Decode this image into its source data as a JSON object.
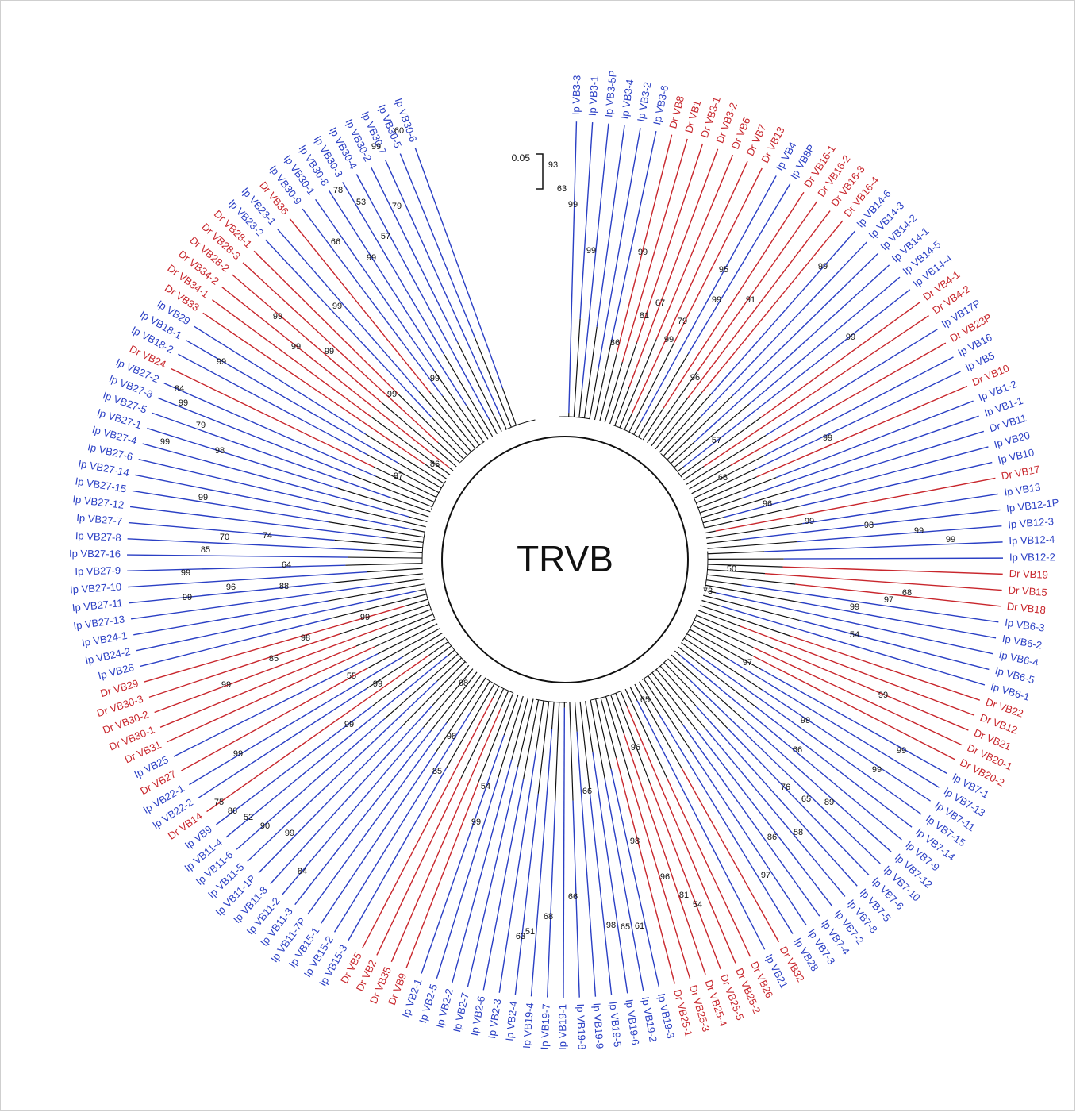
{
  "title": "TRVB",
  "scale_label": "0.05",
  "leaves": [
    {
      "label": "Ip VB3-3",
      "color": "#2a3fc4"
    },
    {
      "label": "Ip VB3-1",
      "color": "#2a3fc4"
    },
    {
      "label": "Ip VB3-5P",
      "color": "#2a3fc4"
    },
    {
      "label": "Ip VB3-4",
      "color": "#2a3fc4"
    },
    {
      "label": "Ip VB3-2",
      "color": "#2a3fc4"
    },
    {
      "label": "Ip VB3-6",
      "color": "#2a3fc4"
    },
    {
      "label": "Dr VB8",
      "color": "#c8262c"
    },
    {
      "label": "Dr VB1",
      "color": "#c8262c"
    },
    {
      "label": "Dr VB3-1",
      "color": "#c8262c"
    },
    {
      "label": "Dr VB3-2",
      "color": "#c8262c"
    },
    {
      "label": "Dr VB6",
      "color": "#c8262c"
    },
    {
      "label": "Dr VB7",
      "color": "#c8262c"
    },
    {
      "label": "Dr VB13",
      "color": "#c8262c"
    },
    {
      "label": "Ip VB4",
      "color": "#2a3fc4"
    },
    {
      "label": "Ip VB8P",
      "color": "#2a3fc4"
    },
    {
      "label": "Dr VB16-1",
      "color": "#c8262c"
    },
    {
      "label": "Dr VB16-2",
      "color": "#c8262c"
    },
    {
      "label": "Dr VB16-3",
      "color": "#c8262c"
    },
    {
      "label": "Dr VB16-4",
      "color": "#c8262c"
    },
    {
      "label": "Ip VB14-6",
      "color": "#2a3fc4"
    },
    {
      "label": "Ip VB14-3",
      "color": "#2a3fc4"
    },
    {
      "label": "Ip VB14-2",
      "color": "#2a3fc4"
    },
    {
      "label": "Ip VB14-1",
      "color": "#2a3fc4"
    },
    {
      "label": "Ip VB14-5",
      "color": "#2a3fc4"
    },
    {
      "label": "Ip VB14-4",
      "color": "#2a3fc4"
    },
    {
      "label": "Dr VB4-1",
      "color": "#c8262c"
    },
    {
      "label": "Dr VB4-2",
      "color": "#c8262c"
    },
    {
      "label": "Ip VB17P",
      "color": "#2a3fc4"
    },
    {
      "label": "Dr VB23P",
      "color": "#c8262c"
    },
    {
      "label": "Ip VB16",
      "color": "#2a3fc4"
    },
    {
      "label": "Ip VB5",
      "color": "#2a3fc4"
    },
    {
      "label": "Dr VB10",
      "color": "#c8262c"
    },
    {
      "label": "Ip VB1-2",
      "color": "#2a3fc4"
    },
    {
      "label": "Ip VB1-1",
      "color": "#2a3fc4"
    },
    {
      "label": "Dr VB11",
      "color": "#2a3fc4"
    },
    {
      "label": "Ip VB20",
      "color": "#2a3fc4"
    },
    {
      "label": "Ip VB10",
      "color": "#2a3fc4"
    },
    {
      "label": "Dr VB17",
      "color": "#c8262c"
    },
    {
      "label": "Ip VB13",
      "color": "#2a3fc4"
    },
    {
      "label": "Ip VB12-1P",
      "color": "#2a3fc4"
    },
    {
      "label": "Ip VB12-3",
      "color": "#2a3fc4"
    },
    {
      "label": "Ip VB12-4",
      "color": "#2a3fc4"
    },
    {
      "label": "Ip VB12-2",
      "color": "#2a3fc4"
    },
    {
      "label": "Dr VB19",
      "color": "#c8262c"
    },
    {
      "label": "Dr VB15",
      "color": "#c8262c"
    },
    {
      "label": "Dr VB18",
      "color": "#c8262c"
    },
    {
      "label": "Ip VB6-3",
      "color": "#2a3fc4"
    },
    {
      "label": "Ip VB6-2",
      "color": "#2a3fc4"
    },
    {
      "label": "Ip VB6-4",
      "color": "#2a3fc4"
    },
    {
      "label": "Ip VB6-5",
      "color": "#2a3fc4"
    },
    {
      "label": "Ip VB6-1",
      "color": "#2a3fc4"
    },
    {
      "label": "Dr VB22",
      "color": "#c8262c"
    },
    {
      "label": "Dr VB12",
      "color": "#c8262c"
    },
    {
      "label": "Dr VB21",
      "color": "#c8262c"
    },
    {
      "label": "Dr VB20-1",
      "color": "#c8262c"
    },
    {
      "label": "Dr VB20-2",
      "color": "#c8262c"
    },
    {
      "label": "Ip VB7-1",
      "color": "#2a3fc4"
    },
    {
      "label": "Ip VB7-13",
      "color": "#2a3fc4"
    },
    {
      "label": "Ip VB7-11",
      "color": "#2a3fc4"
    },
    {
      "label": "Ip VB7-15",
      "color": "#2a3fc4"
    },
    {
      "label": "Ip VB7-14",
      "color": "#2a3fc4"
    },
    {
      "label": "Ip VB7-9",
      "color": "#2a3fc4"
    },
    {
      "label": "Ip VB7-12",
      "color": "#2a3fc4"
    },
    {
      "label": "Ip VB7-10",
      "color": "#2a3fc4"
    },
    {
      "label": "Ip VB7-6",
      "color": "#2a3fc4"
    },
    {
      "label": "Ip VB7-5",
      "color": "#2a3fc4"
    },
    {
      "label": "Ip VB7-8",
      "color": "#2a3fc4"
    },
    {
      "label": "Ip VB7-2",
      "color": "#2a3fc4"
    },
    {
      "label": "Ip VB7-4",
      "color": "#2a3fc4"
    },
    {
      "label": "Ip VB7-3",
      "color": "#2a3fc4"
    },
    {
      "label": "Ip VB28",
      "color": "#2a3fc4"
    },
    {
      "label": "Dr VB32",
      "color": "#c8262c"
    },
    {
      "label": "Ip VB21",
      "color": "#2a3fc4"
    },
    {
      "label": "Dr VB26",
      "color": "#c8262c"
    },
    {
      "label": "Dr VB25-2",
      "color": "#c8262c"
    },
    {
      "label": "Dr VB25-5",
      "color": "#c8262c"
    },
    {
      "label": "Dr VB25-4",
      "color": "#c8262c"
    },
    {
      "label": "Dr VB25-3",
      "color": "#c8262c"
    },
    {
      "label": "Dr VB25-1",
      "color": "#c8262c"
    },
    {
      "label": "Ip VB19-3",
      "color": "#2a3fc4"
    },
    {
      "label": "Ip VB19-2",
      "color": "#2a3fc4"
    },
    {
      "label": "Ip VB19-6",
      "color": "#2a3fc4"
    },
    {
      "label": "Ip VB19-5",
      "color": "#2a3fc4"
    },
    {
      "label": "Ip VB19-9",
      "color": "#2a3fc4"
    },
    {
      "label": "Ip VB19-8",
      "color": "#2a3fc4"
    },
    {
      "label": "Ip VB19-1",
      "color": "#2a3fc4"
    },
    {
      "label": "Ip VB19-7",
      "color": "#2a3fc4"
    },
    {
      "label": "Ip VB19-4",
      "color": "#2a3fc4"
    },
    {
      "label": "Ip VB2-4",
      "color": "#2a3fc4"
    },
    {
      "label": "Ip VB2-3",
      "color": "#2a3fc4"
    },
    {
      "label": "Ip VB2-6",
      "color": "#2a3fc4"
    },
    {
      "label": "Ip VB2-7",
      "color": "#2a3fc4"
    },
    {
      "label": "Ip VB2-2",
      "color": "#2a3fc4"
    },
    {
      "label": "Ip VB2-5",
      "color": "#2a3fc4"
    },
    {
      "label": "Ip VB2-1",
      "color": "#2a3fc4"
    },
    {
      "label": "Dr VB9",
      "color": "#c8262c"
    },
    {
      "label": "Dr VB35",
      "color": "#c8262c"
    },
    {
      "label": "Dr VB2",
      "color": "#c8262c"
    },
    {
      "label": "Dr VB5",
      "color": "#c8262c"
    },
    {
      "label": "Ip VB15-3",
      "color": "#2a3fc4"
    },
    {
      "label": "Ip VB15-2",
      "color": "#2a3fc4"
    },
    {
      "label": "Ip VB15-1",
      "color": "#2a3fc4"
    },
    {
      "label": "Ip VB11-7P",
      "color": "#2a3fc4"
    },
    {
      "label": "Ip VB11-3",
      "color": "#2a3fc4"
    },
    {
      "label": "Ip VB11-2",
      "color": "#2a3fc4"
    },
    {
      "label": "Ip VB11-8",
      "color": "#2a3fc4"
    },
    {
      "label": "Ip VB11-1P",
      "color": "#2a3fc4"
    },
    {
      "label": "Ip VB11-5",
      "color": "#2a3fc4"
    },
    {
      "label": "Ip VB11-6",
      "color": "#2a3fc4"
    },
    {
      "label": "Ip VB11-4",
      "color": "#2a3fc4"
    },
    {
      "label": "Ip VB9",
      "color": "#2a3fc4"
    },
    {
      "label": "Dr VB14",
      "color": "#c8262c"
    },
    {
      "label": "Ip VB22-2",
      "color": "#2a3fc4"
    },
    {
      "label": "Ip VB22-1",
      "color": "#2a3fc4"
    },
    {
      "label": "Dr VB27",
      "color": "#c8262c"
    },
    {
      "label": "Ip VB25",
      "color": "#2a3fc4"
    },
    {
      "label": "Dr VB31",
      "color": "#c8262c"
    },
    {
      "label": "Dr VB30-1",
      "color": "#c8262c"
    },
    {
      "label": "Dr VB30-2",
      "color": "#c8262c"
    },
    {
      "label": "Dr VB30-3",
      "color": "#c8262c"
    },
    {
      "label": "Dr VB29",
      "color": "#c8262c"
    },
    {
      "label": "Ip VB26",
      "color": "#2a3fc4"
    },
    {
      "label": "Ip VB24-2",
      "color": "#2a3fc4"
    },
    {
      "label": "Ip VB24-1",
      "color": "#2a3fc4"
    },
    {
      "label": "Ip VB27-13",
      "color": "#2a3fc4"
    },
    {
      "label": "Ip VB27-11",
      "color": "#2a3fc4"
    },
    {
      "label": "Ip VB27-10",
      "color": "#2a3fc4"
    },
    {
      "label": "Ip VB27-9",
      "color": "#2a3fc4"
    },
    {
      "label": "Ip VB27-16",
      "color": "#2a3fc4"
    },
    {
      "label": "Ip VB27-8",
      "color": "#2a3fc4"
    },
    {
      "label": "Ip VB27-7",
      "color": "#2a3fc4"
    },
    {
      "label": "Ip VB27-12",
      "color": "#2a3fc4"
    },
    {
      "label": "Ip VB27-15",
      "color": "#2a3fc4"
    },
    {
      "label": "Ip VB27-14",
      "color": "#2a3fc4"
    },
    {
      "label": "Ip VB27-6",
      "color": "#2a3fc4"
    },
    {
      "label": "Ip VB27-4",
      "color": "#2a3fc4"
    },
    {
      "label": "Ip VB27-1",
      "color": "#2a3fc4"
    },
    {
      "label": "Ip VB27-5",
      "color": "#2a3fc4"
    },
    {
      "label": "Ip VB27-3",
      "color": "#2a3fc4"
    },
    {
      "label": "Ip VB27-2",
      "color": "#2a3fc4"
    },
    {
      "label": "Dr VB24",
      "color": "#c8262c"
    },
    {
      "label": "Ip VB18-2",
      "color": "#2a3fc4"
    },
    {
      "label": "Ip VB18-1",
      "color": "#2a3fc4"
    },
    {
      "label": "Ip VB29",
      "color": "#2a3fc4"
    },
    {
      "label": "Dr VB33",
      "color": "#c8262c"
    },
    {
      "label": "Dr VB34-1",
      "color": "#c8262c"
    },
    {
      "label": "Dr VB34-2",
      "color": "#c8262c"
    },
    {
      "label": "Dr VB28-2",
      "color": "#c8262c"
    },
    {
      "label": "Dr VB28-3",
      "color": "#c8262c"
    },
    {
      "label": "Dr VB28-1",
      "color": "#c8262c"
    },
    {
      "label": "Ip VB23-2",
      "color": "#2a3fc4"
    },
    {
      "label": "Ip VB23-1",
      "color": "#2a3fc4"
    },
    {
      "label": "Dr VB36",
      "color": "#c8262c"
    },
    {
      "label": "Ip VB30-9",
      "color": "#2a3fc4"
    },
    {
      "label": "Ip VB30-1",
      "color": "#2a3fc4"
    },
    {
      "label": "Ip VB30-8",
      "color": "#2a3fc4"
    },
    {
      "label": "Ip VB30-3",
      "color": "#2a3fc4"
    },
    {
      "label": "Ip VB30-4",
      "color": "#2a3fc4"
    },
    {
      "label": "Ip VB30-2",
      "color": "#2a3fc4"
    },
    {
      "label": "Ip VB30-7",
      "color": "#2a3fc4"
    },
    {
      "label": "Ip VB30-5",
      "color": "#2a3fc4"
    },
    {
      "label": "Ip VB30-6",
      "color": "#2a3fc4"
    }
  ],
  "bootstrap": [
    93,
    63,
    99,
    99,
    86,
    81,
    99,
    67,
    79,
    99,
    96,
    95,
    99,
    91,
    99,
    99,
    57,
    68,
    99,
    96,
    99,
    98,
    99,
    99,
    73,
    50,
    97,
    68,
    99,
    54,
    97,
    99,
    99,
    66,
    99,
    99,
    76,
    65,
    89,
    86,
    58,
    97,
    65,
    96,
    98,
    96,
    81,
    54,
    66,
    66,
    68,
    51,
    63,
    98,
    65,
    61,
    99,
    54,
    85,
    98,
    68,
    99,
    55,
    99,
    98,
    85,
    99,
    99,
    99,
    99,
    84,
    90,
    52,
    86,
    75,
    88,
    64,
    74,
    99,
    96,
    99,
    85,
    70,
    99,
    98,
    79,
    99,
    99,
    84,
    99,
    97,
    86,
    99,
    99,
    99,
    99,
    99,
    99,
    66,
    99,
    57,
    79,
    78,
    53,
    99,
    60
  ]
}
